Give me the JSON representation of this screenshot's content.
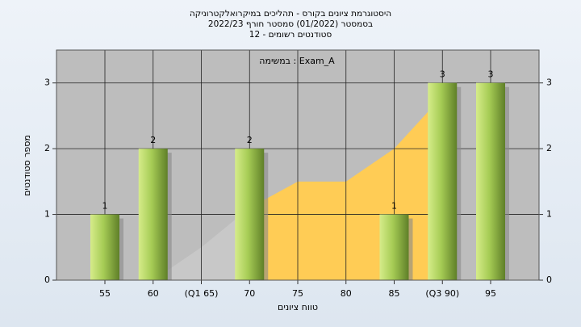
{
  "chart_data": {
    "type": "bar",
    "title": [
      "היסטוגרמת ציונים בקורס - תהליכים במיקרואלקטרוניקה",
      "בסמסטר (01/2022) סמסטר חורף 2022/23",
      "סטודנטים רשומים - 12"
    ],
    "legend_text": "במשימה : Exam_A",
    "x_label": "טווח ציונים",
    "y_label": "מספר סטודנטים",
    "categories": [
      "55",
      "60",
      "(Q1 65)",
      "70",
      "75",
      "80",
      "85",
      "(Q3 90)",
      "95"
    ],
    "series": [
      {
        "name": "Exam_A",
        "color": "#8fb840",
        "values": [
          1,
          2,
          0,
          2,
          0,
          0,
          1,
          3,
          3
        ],
        "value_labels": [
          "1",
          "2",
          null,
          "2",
          null,
          null,
          "1",
          "3",
          "3"
        ]
      },
      {
        "type": "area",
        "color": "#c8c8c8",
        "values": [
          null,
          0,
          0.5,
          1.1,
          null,
          null,
          null,
          null,
          null
        ]
      },
      {
        "type": "area",
        "color": "#ffcc55",
        "values": [
          null,
          null,
          null,
          1.1,
          1.5,
          1.5,
          2.0,
          2.8,
          null
        ]
      }
    ],
    "ylim": [
      0,
      3.5
    ],
    "yticks": [
      0,
      1,
      2,
      3
    ],
    "grid": true
  }
}
